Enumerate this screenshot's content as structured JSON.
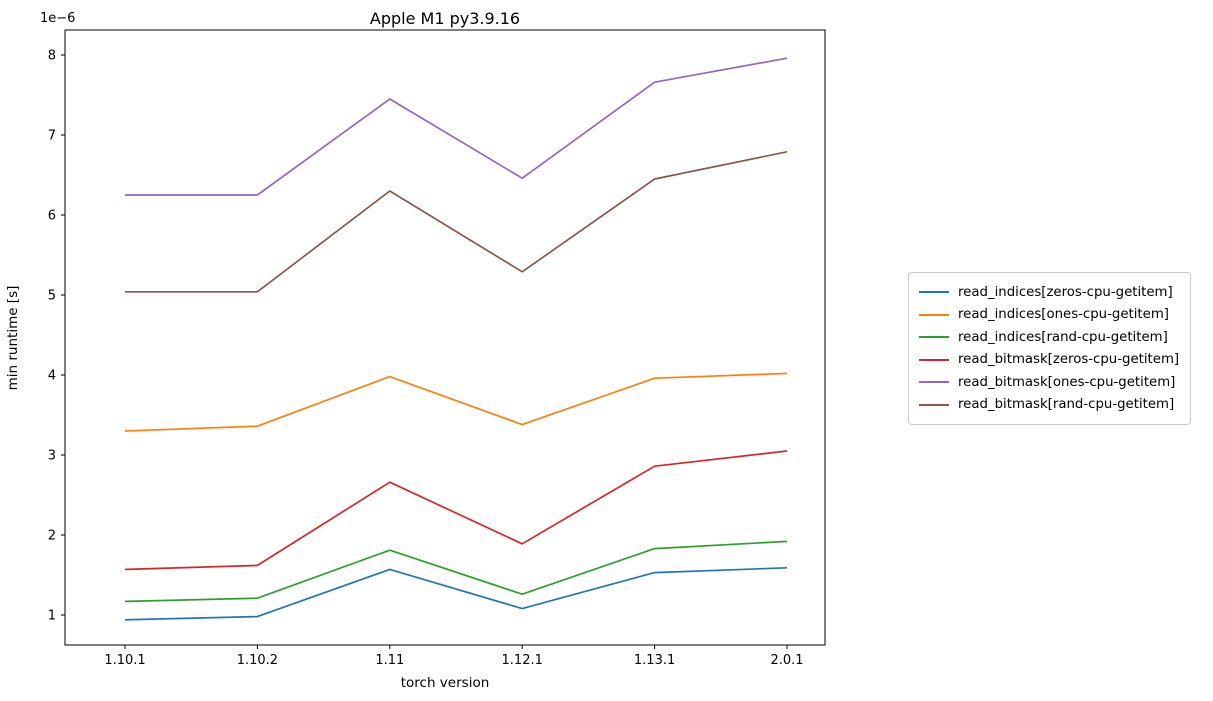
{
  "chart_data": {
    "type": "line",
    "title": "Apple M1 py3.9.16",
    "xlabel": "torch version",
    "ylabel": "min runtime [s]",
    "y_offset_label": "1e−6",
    "x_categories": [
      "1.10.1",
      "1.10.2",
      "1.11",
      "1.12.1",
      "1.13.1",
      "2.0.1"
    ],
    "y_ticks": [
      1,
      2,
      3,
      4,
      5,
      6,
      7,
      8
    ],
    "y_unit_note": "values are in units of 1e-6 seconds as shown by axis offset",
    "ylim": [
      0.62,
      8.31
    ],
    "grid": false,
    "legend_position": "outside-right",
    "axis_color": "#000000",
    "series": [
      {
        "name": "read_indices[zeros-cpu-getitem]",
        "color": "#1f77b4",
        "values": [
          0.94,
          0.98,
          1.57,
          1.08,
          1.53,
          1.59
        ]
      },
      {
        "name": "read_indices[ones-cpu-getitem]",
        "color": "#ff7f0e",
        "values": [
          3.3,
          3.36,
          3.98,
          3.38,
          3.96,
          4.02
        ]
      },
      {
        "name": "read_indices[rand-cpu-getitem]",
        "color": "#2ca02c",
        "values": [
          1.17,
          1.21,
          1.81,
          1.26,
          1.83,
          1.92
        ]
      },
      {
        "name": "read_bitmask[zeros-cpu-getitem]",
        "color": "#d62728",
        "values": [
          1.57,
          1.62,
          2.66,
          1.89,
          2.86,
          3.05
        ]
      },
      {
        "name": "read_bitmask[ones-cpu-getitem]",
        "color": "#9467bd",
        "values": [
          6.25,
          6.25,
          7.45,
          6.46,
          7.66,
          7.96
        ]
      },
      {
        "name": "read_bitmask[rand-cpu-getitem]",
        "color": "#8c564b",
        "values": [
          5.04,
          5.04,
          6.3,
          5.29,
          6.45,
          6.79
        ]
      }
    ]
  }
}
